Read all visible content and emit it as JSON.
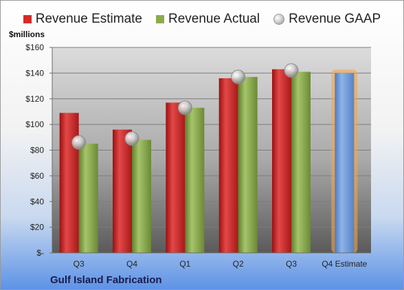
{
  "legend": {
    "estimate": "Revenue Estimate",
    "actual": "Revenue Actual",
    "gaap": "Revenue GAAP"
  },
  "unit_label": "$millions",
  "company": "Gulf Island Fabrication",
  "colors": {
    "estimate": "#d42a2a",
    "actual": "#8cab4f",
    "forecast": "#6f9ad8",
    "forecast_glow": "#f5a54a"
  },
  "chart_data": {
    "type": "bar",
    "categories": [
      "Q3",
      "Q4",
      "Q1",
      "Q2",
      "Q3",
      "Q4 Estimate"
    ],
    "series": [
      {
        "name": "Revenue Estimate",
        "values": [
          109,
          96,
          117,
          136,
          143,
          null
        ]
      },
      {
        "name": "Revenue Actual",
        "values": [
          85,
          88,
          113,
          137,
          141,
          null
        ]
      },
      {
        "name": "Revenue GAAP",
        "values": [
          86,
          89,
          113,
          137,
          142,
          null
        ]
      }
    ],
    "forecast": {
      "category": "Q4 Estimate",
      "value": 140
    },
    "ylim": [
      0,
      160
    ],
    "yticks": [
      {
        "value": 0,
        "label": "$-"
      },
      {
        "value": 20,
        "label": "$20"
      },
      {
        "value": 40,
        "label": "$40"
      },
      {
        "value": 60,
        "label": "$60"
      },
      {
        "value": 80,
        "label": "$80"
      },
      {
        "value": 100,
        "label": "$100"
      },
      {
        "value": 120,
        "label": "$120"
      },
      {
        "value": 140,
        "label": "$140"
      },
      {
        "value": 160,
        "label": "$160"
      }
    ],
    "grid": true,
    "legend_position": "top"
  }
}
